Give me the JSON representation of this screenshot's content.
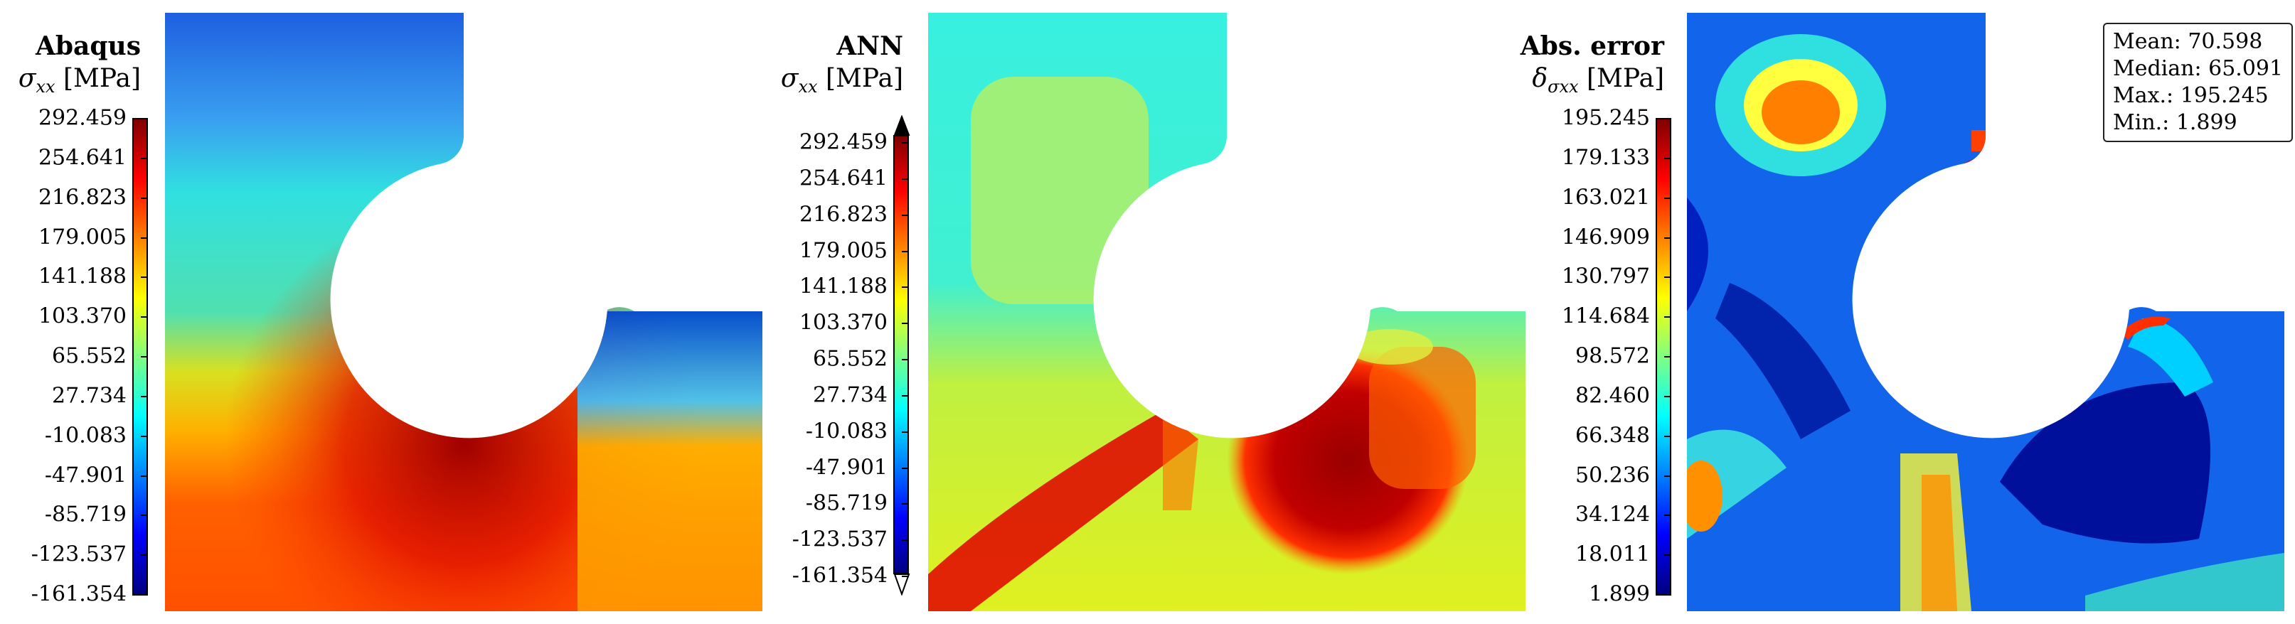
{
  "panels": [
    {
      "title": "Abaqus",
      "quantity_symbol": "σ",
      "quantity_subscript": "xx",
      "unit": "[MPa]",
      "ticks": [
        "292.459",
        "254.641",
        "216.823",
        "179.005",
        "141.188",
        "103.370",
        "65.552",
        "27.734",
        "-10.083",
        "-47.901",
        "-85.719",
        "-123.537",
        "-161.354"
      ],
      "extend_arrows": false
    },
    {
      "title": "ANN",
      "quantity_symbol": "σ",
      "quantity_subscript": "xx",
      "unit": "[MPa]",
      "ticks": [
        "292.459",
        "254.641",
        "216.823",
        "179.005",
        "141.188",
        "103.370",
        "65.552",
        "27.734",
        "-10.083",
        "-47.901",
        "-85.719",
        "-123.537",
        "-161.354"
      ],
      "extend_arrows": true
    },
    {
      "title": "Abs. error",
      "quantity_symbol": "δ",
      "quantity_subscript": "σxx",
      "unit": "[MPa]",
      "ticks": [
        "195.245",
        "179.133",
        "163.021",
        "146.909",
        "130.797",
        "114.684",
        "98.572",
        "82.460",
        "66.348",
        "50.236",
        "34.124",
        "18.011",
        "1.899"
      ],
      "extend_arrows": false
    }
  ],
  "stats": {
    "mean": "Mean: 70.598",
    "median": "Median: 65.091",
    "max": "Max.: 195.245",
    "min": "Min.: 1.899"
  },
  "colormap": "jet"
}
